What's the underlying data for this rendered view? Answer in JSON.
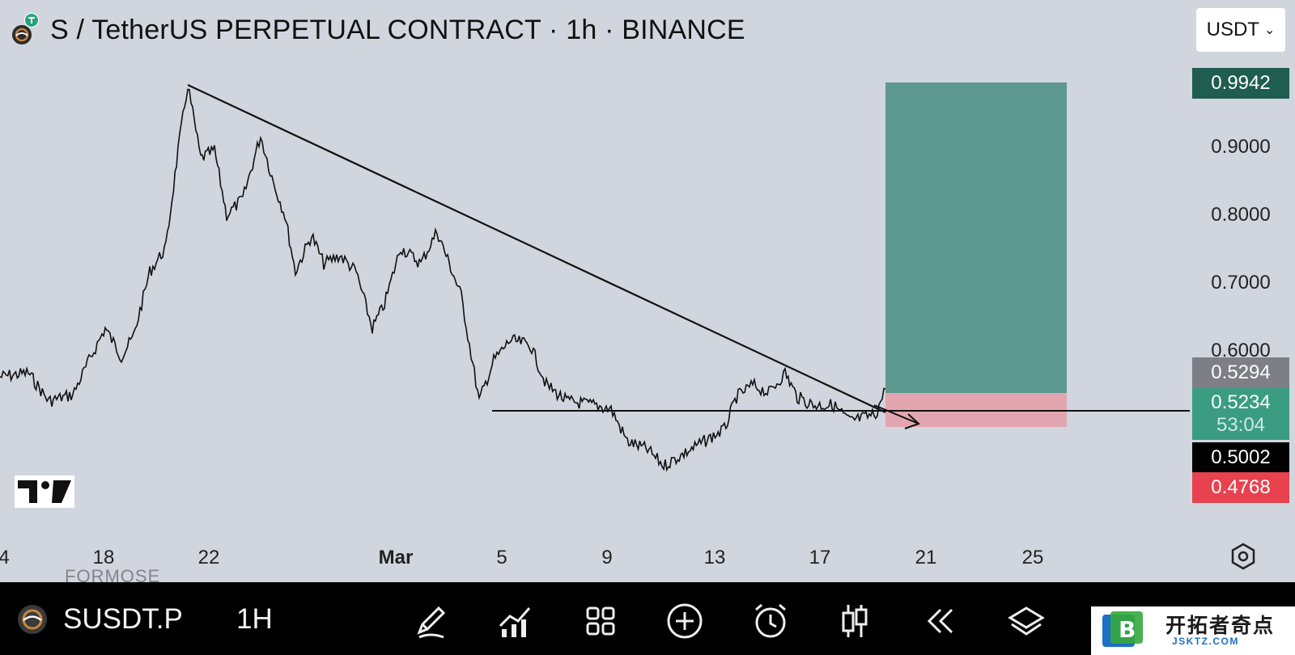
{
  "header": {
    "title": "S / TetherUS PERPETUAL CONTRACT · 1h · BINANCE",
    "currency": "USDT"
  },
  "price_axis": {
    "ticks": [
      "0.9000",
      "0.8000",
      "0.7000",
      "0.6000"
    ],
    "labels": {
      "target": "0.9942",
      "prev_close": "0.5294",
      "last": "0.5234",
      "countdown": "53:04",
      "entry": "0.5002",
      "stop": "0.4768"
    }
  },
  "date_axis": {
    "labels": [
      "4",
      "18",
      "22",
      "Mar",
      "5",
      "9",
      "13",
      "17",
      "21",
      "25"
    ]
  },
  "bottom_bar": {
    "symbol": "SUSDT.P",
    "interval": "1H",
    "ghost_text": "FORMOSE",
    "tools": [
      "pen-icon",
      "indicators-icon",
      "layout-icon",
      "add-icon",
      "alert-icon",
      "candles-icon",
      "replay-icon",
      "layers-icon"
    ]
  },
  "watermark": {
    "cn_name": "开拓者奇点",
    "url": "JSKTZ.COM"
  },
  "colors": {
    "background": "#d1d5de",
    "profit_zone": "#5e9990",
    "loss_zone": "#e3a6b0",
    "target": "#1e5d4f",
    "last_price": "#3a9c81",
    "prev_close": "#7d7e86",
    "entry": "#000000",
    "stop": "#e8424f"
  },
  "chart_data": {
    "type": "line",
    "y_axis_ticks": [
      0.6,
      0.7,
      0.8,
      0.9
    ],
    "x_axis_ticks": [
      "4",
      "18",
      "22",
      "Mar",
      "5",
      "9",
      "13",
      "17",
      "21",
      "25"
    ],
    "trade": {
      "target": 0.9942,
      "entry": 0.5002,
      "stop": 0.4768,
      "last": 0.5234
    }
  }
}
